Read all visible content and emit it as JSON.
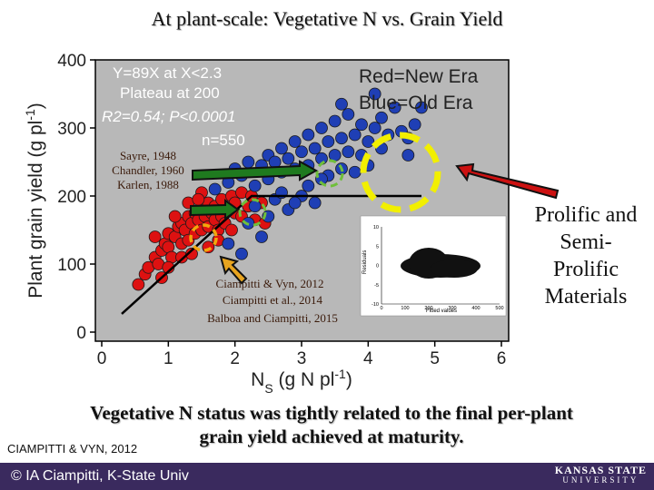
{
  "slide": {
    "title": "At plant-scale: Vegetative N vs. Grain Yield",
    "right_label": [
      "Prolific and",
      "Semi-",
      "Prolific",
      "Materials"
    ],
    "conclusion_line1": "Vegetative N status was tightly related to the final per-plant",
    "conclusion_line2": "grain yield achieved at maturity.",
    "citation_small": "CIAMPITTI & VYN, 2012",
    "footer": "© IA Ciampitti, K-State Univ",
    "logo_top": "KANSAS STATE",
    "logo_bottom": "UNIVERSITY",
    "colors": {
      "footer_bg": "#3a2a5e",
      "plot_bg": "#b8b8b8"
    }
  },
  "chart_data": {
    "type": "scatter",
    "xlabel": "NS (g N pl-1)",
    "ylabel": "Plant grain yield (g pl-1)",
    "xlim": [
      0,
      6
    ],
    "ylim": [
      0,
      400
    ],
    "xticks": [
      0,
      1,
      2,
      3,
      4,
      5,
      6
    ],
    "yticks": [
      0,
      100,
      200,
      300,
      400
    ],
    "series": [
      {
        "color": "#dd1111",
        "points": [
          [
            0.55,
            70
          ],
          [
            0.65,
            85
          ],
          [
            0.7,
            95
          ],
          [
            0.8,
            110
          ],
          [
            0.85,
            100
          ],
          [
            0.9,
            120
          ],
          [
            0.95,
            130
          ],
          [
            1.0,
            125
          ],
          [
            1.0,
            145
          ],
          [
            1.05,
            110
          ],
          [
            1.1,
            140
          ],
          [
            1.15,
            155
          ],
          [
            1.2,
            130
          ],
          [
            1.2,
            160
          ],
          [
            1.25,
            150
          ],
          [
            1.3,
            170
          ],
          [
            1.3,
            135
          ],
          [
            1.35,
            160
          ],
          [
            1.4,
            175
          ],
          [
            1.4,
            145
          ],
          [
            1.45,
            165
          ],
          [
            1.5,
            180
          ],
          [
            1.5,
            150
          ],
          [
            1.55,
            170
          ],
          [
            1.6,
            190
          ],
          [
            1.6,
            155
          ],
          [
            1.65,
            175
          ],
          [
            1.7,
            165
          ],
          [
            1.7,
            185
          ],
          [
            1.75,
            150
          ],
          [
            1.8,
            195
          ],
          [
            1.8,
            170
          ],
          [
            1.85,
            160
          ],
          [
            1.9,
            180
          ],
          [
            1.95,
            200
          ],
          [
            2.0,
            175
          ],
          [
            2.0,
            190
          ],
          [
            2.1,
            205
          ],
          [
            2.1,
            170
          ],
          [
            2.2,
            185
          ],
          [
            2.25,
            200
          ],
          [
            2.3,
            165
          ],
          [
            1.2,
            110
          ],
          [
            1.0,
            95
          ],
          [
            0.9,
            80
          ],
          [
            1.3,
            190
          ],
          [
            1.5,
            205
          ],
          [
            1.6,
            125
          ],
          [
            1.35,
            115
          ],
          [
            1.75,
            135
          ],
          [
            1.95,
            150
          ],
          [
            2.4,
            190
          ],
          [
            2.45,
            160
          ],
          [
            1.45,
            195
          ],
          [
            1.1,
            170
          ],
          [
            0.8,
            140
          ]
        ]
      },
      {
        "color": "#1f3fb5",
        "points": [
          [
            1.7,
            210
          ],
          [
            1.9,
            220
          ],
          [
            2.0,
            240
          ],
          [
            2.1,
            230
          ],
          [
            2.2,
            250
          ],
          [
            2.3,
            215
          ],
          [
            2.4,
            245
          ],
          [
            2.5,
            260
          ],
          [
            2.5,
            225
          ],
          [
            2.6,
            250
          ],
          [
            2.7,
            270
          ],
          [
            2.7,
            235
          ],
          [
            2.8,
            255
          ],
          [
            2.9,
            280
          ],
          [
            2.9,
            240
          ],
          [
            3.0,
            265
          ],
          [
            3.1,
            290
          ],
          [
            3.1,
            245
          ],
          [
            3.2,
            270
          ],
          [
            3.3,
            300
          ],
          [
            3.3,
            255
          ],
          [
            3.4,
            280
          ],
          [
            3.5,
            310
          ],
          [
            3.5,
            260
          ],
          [
            3.6,
            285
          ],
          [
            3.7,
            320
          ],
          [
            3.7,
            265
          ],
          [
            3.8,
            290
          ],
          [
            3.9,
            305
          ],
          [
            3.9,
            260
          ],
          [
            4.0,
            280
          ],
          [
            4.1,
            300
          ],
          [
            4.2,
            315
          ],
          [
            4.2,
            270
          ],
          [
            4.3,
            290
          ],
          [
            4.4,
            330
          ],
          [
            4.5,
            295
          ],
          [
            4.6,
            285
          ],
          [
            4.7,
            305
          ],
          [
            2.6,
            195
          ],
          [
            2.8,
            180
          ],
          [
            3.0,
            200
          ],
          [
            3.2,
            190
          ],
          [
            3.4,
            230
          ],
          [
            2.3,
            185
          ],
          [
            2.5,
            170
          ],
          [
            3.6,
            240
          ],
          [
            3.8,
            235
          ],
          [
            4.0,
            245
          ],
          [
            2.2,
            160
          ],
          [
            2.4,
            140
          ],
          [
            2.7,
            205
          ],
          [
            3.1,
            215
          ],
          [
            3.3,
            225
          ],
          [
            2.9,
            190
          ],
          [
            4.8,
            330
          ],
          [
            4.6,
            260
          ],
          [
            4.1,
            350
          ],
          [
            3.6,
            335
          ],
          [
            1.9,
            130
          ],
          [
            2.1,
            115
          ]
        ]
      }
    ],
    "fit": {
      "segments": [
        [
          0.3,
          26.7
        ],
        [
          2.25,
          200
        ],
        [
          4.8,
          200
        ]
      ]
    },
    "annotations": [
      "Y=89X at X<2.3",
      "Plateau at 200",
      "R2=0.54; P<0.0001",
      "n=550",
      "Red=New Era",
      "Blue=Old Era",
      "Sayre, 1948",
      "Chandler, 1960",
      "Karlen, 1988",
      "Ciampitti & Vyn, 2012",
      "Ciampitti et al., 2014",
      "Balboa and Ciampitti, 2015"
    ],
    "inset": {
      "xlabel": "Fitted values",
      "ylabel": "Residuals",
      "xticks": [
        0,
        100,
        200,
        300,
        400,
        500
      ],
      "yticks": [
        -10,
        -5,
        0,
        5,
        10
      ],
      "xlim": [
        0,
        500
      ],
      "ylim": [
        -10,
        10
      ]
    }
  }
}
